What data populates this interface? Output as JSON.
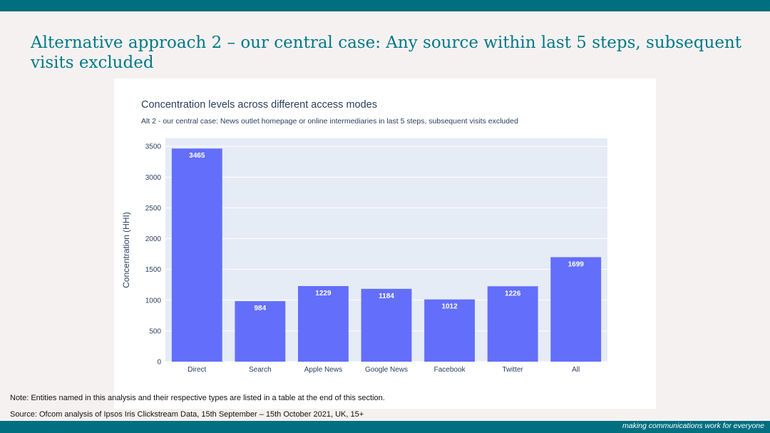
{
  "slide": {
    "title": "Alternative approach 2 – our central case: Any source within last 5 steps, subsequent visits excluded",
    "note": "Note: Entities named in this analysis and their respective types are listed in a table at the end of this section.",
    "source": "Source: Ofcom analysis of Ipsos Iris Clickstream Data, 15th September – 15th October 2021, UK, 15+",
    "tagline_prefix": "making communications work ",
    "tagline_emphasis": "for everyone"
  },
  "colors": {
    "brand_teal": "#006f7f",
    "title_teal": "#007a87",
    "bar": "#636efa",
    "plot_bg": "#e5ecf6"
  },
  "chart_data": {
    "type": "bar",
    "title": "Concentration levels across different access modes",
    "subtitle": "Alt 2 - our central case: News outlet homepage or online intermediaries in last 5 steps, subsequent visits excluded",
    "xlabel": "",
    "ylabel": "Concentration (HHI)",
    "categories": [
      "Direct",
      "Search",
      "Apple News",
      "Google News",
      "Facebook",
      "Twitter",
      "All"
    ],
    "values": [
      3465,
      984,
      1229,
      1184,
      1012,
      1226,
      1699
    ],
    "ylim": [
      0,
      3630
    ],
    "yticks": [
      0,
      500,
      1000,
      1500,
      2000,
      2500,
      3000,
      3500
    ],
    "grid": true,
    "data_labels": "inside-top"
  }
}
